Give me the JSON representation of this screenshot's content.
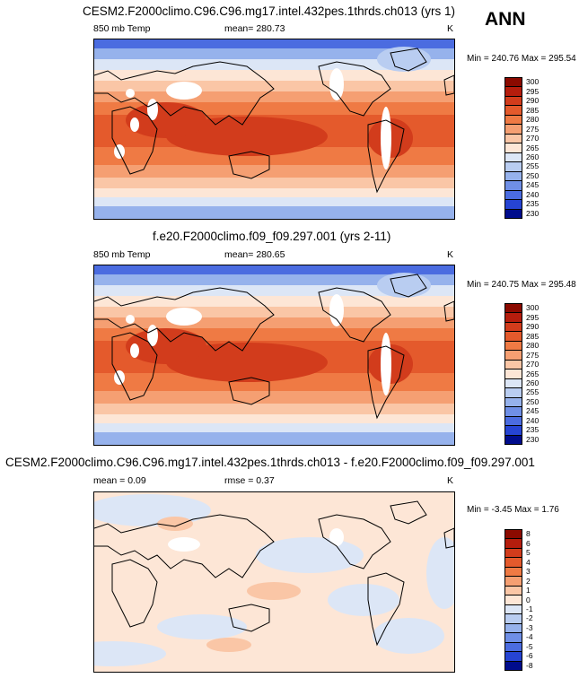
{
  "season_label": "ANN",
  "panels": [
    {
      "title": "CESM2.F2000climo.C96.C96.mg17.intel.432pes.1thrds.ch013 (yrs 1)",
      "left_label": "850 mb Temp",
      "center_label": "mean= 280.73",
      "units": "K",
      "range_text": "Min = 240.76 Max = 295.54",
      "colorbar_levels": [
        "300",
        "295",
        "290",
        "285",
        "280",
        "275",
        "270",
        "265",
        "260",
        "255",
        "250",
        "245",
        "240",
        "235",
        "230"
      ],
      "colorbar_colors": [
        "#8b0a00",
        "#b51d0d",
        "#d23c1c",
        "#e45a2c",
        "#ef7a44",
        "#f59f72",
        "#fac6a6",
        "#fde6d6",
        "#dce6f6",
        "#b9cdf1",
        "#96b2ec",
        "#6f8fe6",
        "#4b6ce0",
        "#2644d3",
        "#000c8c"
      ]
    },
    {
      "title": "f.e20.F2000climo.f09_f09.297.001 (yrs 2-11)",
      "left_label": "850 mb Temp",
      "center_label": "mean= 280.65",
      "units": "K",
      "range_text": "Min = 240.75 Max = 295.48",
      "colorbar_levels": [
        "300",
        "295",
        "290",
        "285",
        "280",
        "275",
        "270",
        "265",
        "260",
        "255",
        "250",
        "245",
        "240",
        "235",
        "230"
      ],
      "colorbar_colors": [
        "#8b0a00",
        "#b51d0d",
        "#d23c1c",
        "#e45a2c",
        "#ef7a44",
        "#f59f72",
        "#fac6a6",
        "#fde6d6",
        "#dce6f6",
        "#b9cdf1",
        "#96b2ec",
        "#6f8fe6",
        "#4b6ce0",
        "#2644d3",
        "#000c8c"
      ]
    },
    {
      "title": "CESM2.F2000climo.C96.C96.mg17.intel.432pes.1thrds.ch013 - f.e20.F2000climo.f09_f09.297.001",
      "left_label": "mean =   0.09",
      "center_label": "rmse =   0.37",
      "units": "K",
      "range_text": "Min =  -3.45 Max =   1.76",
      "colorbar_levels": [
        "8",
        "6",
        "5",
        "4",
        "3",
        "2",
        "1",
        "0",
        "-1",
        "-2",
        "-3",
        "-4",
        "-5",
        "-6",
        "-8"
      ],
      "colorbar_colors": [
        "#8b0a00",
        "#b51d0d",
        "#d23c1c",
        "#e45a2c",
        "#ef7a44",
        "#f59f72",
        "#fac6a6",
        "#fde6d6",
        "#dce6f6",
        "#b9cdf1",
        "#96b2ec",
        "#6f8fe6",
        "#4b6ce0",
        "#2644d3",
        "#000c8c"
      ]
    }
  ],
  "chart_data": [
    {
      "type": "heatmap",
      "title": "CESM2.F2000climo.C96.C96.mg17.intel.432pes.1thrds.ch013 (yrs 1)",
      "variable": "850 mb Temp",
      "units": "K",
      "mean": 280.73,
      "min": 240.76,
      "max": 295.54,
      "levels": [
        230,
        235,
        240,
        245,
        250,
        255,
        260,
        265,
        270,
        275,
        280,
        285,
        290,
        295,
        300
      ],
      "projection": "global cylindrical equidistant, Pacific-centered"
    },
    {
      "type": "heatmap",
      "title": "f.e20.F2000climo.f09_f09.297.001 (yrs 2-11)",
      "variable": "850 mb Temp",
      "units": "K",
      "mean": 280.65,
      "min": 240.75,
      "max": 295.48,
      "levels": [
        230,
        235,
        240,
        245,
        250,
        255,
        260,
        265,
        270,
        275,
        280,
        285,
        290,
        295,
        300
      ],
      "projection": "global cylindrical equidistant, Pacific-centered"
    },
    {
      "type": "heatmap",
      "title": "CESM2.F2000climo.C96.C96.mg17.intel.432pes.1thrds.ch013 - f.e20.F2000climo.f09_f09.297.001",
      "units": "K",
      "mean": 0.09,
      "rmse": 0.37,
      "min": -3.45,
      "max": 1.76,
      "levels": [
        -8,
        -6,
        -5,
        -4,
        -3,
        -2,
        -1,
        0,
        1,
        2,
        3,
        4,
        5,
        6,
        8
      ],
      "projection": "global cylindrical equidistant, Pacific-centered"
    }
  ]
}
